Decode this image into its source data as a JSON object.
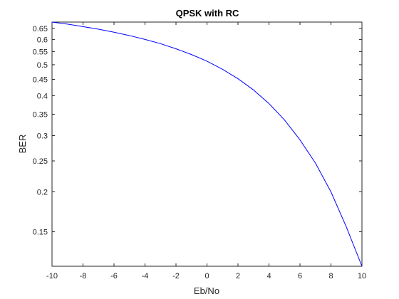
{
  "chart_data": {
    "type": "line",
    "title": "QPSK with RC",
    "xlabel": "Eb/No",
    "ylabel": "BER",
    "xlim": [
      -10,
      10
    ],
    "ylim": [
      0.117,
      0.68
    ],
    "yscale": "log",
    "grid": false,
    "x_ticks": [
      -10,
      -8,
      -6,
      -4,
      -2,
      0,
      2,
      4,
      6,
      8,
      10
    ],
    "x_tick_labels": [
      "-10",
      "-8",
      "-6",
      "-4",
      "-2",
      "0",
      "2",
      "4",
      "6",
      "8",
      "10"
    ],
    "y_ticks": [
      0.15,
      0.2,
      0.25,
      0.3,
      0.35,
      0.4,
      0.45,
      0.5,
      0.55,
      0.6,
      0.65
    ],
    "y_tick_labels": [
      "0.15",
      "0.2",
      "0.25",
      "0.3",
      "0.35",
      "0.4",
      "0.45",
      "0.5",
      "0.55",
      "0.6",
      "0.65"
    ],
    "series": [
      {
        "color": "#0000ff",
        "x": [
          -10,
          -9,
          -8,
          -7,
          -6,
          -5,
          -4,
          -3,
          -2,
          -1,
          0,
          1,
          2,
          3,
          4,
          5,
          6,
          7,
          8,
          9,
          10
        ],
        "y": [
          0.68,
          0.67,
          0.658,
          0.646,
          0.632,
          0.617,
          0.6,
          0.582,
          0.561,
          0.538,
          0.513,
          0.484,
          0.452,
          0.417,
          0.378,
          0.336,
          0.291,
          0.246,
          0.2,
          0.155,
          0.117
        ]
      }
    ]
  }
}
